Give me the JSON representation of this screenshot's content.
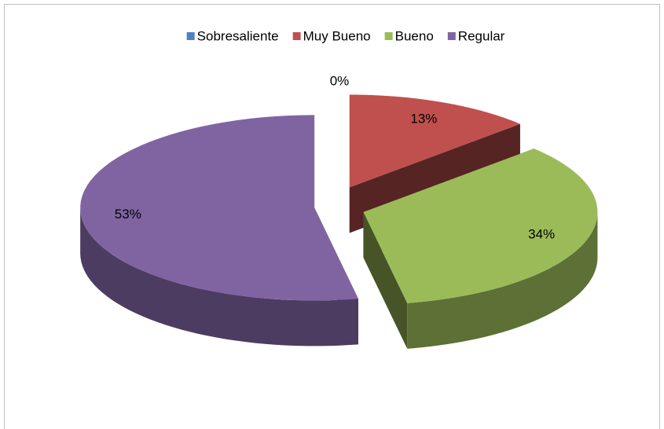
{
  "chart_data": {
    "type": "pie",
    "categories": [
      "Sobresaliente",
      "Muy Bueno",
      "Bueno",
      "Regular"
    ],
    "values": [
      0,
      13,
      34,
      53
    ],
    "value_labels": [
      "0%",
      "13%",
      "34%",
      "53%"
    ],
    "colors": [
      "#4f81bd",
      "#c0504d",
      "#9bbb59",
      "#8064a2"
    ],
    "legend": "top",
    "three_d": true,
    "exploded": true
  }
}
